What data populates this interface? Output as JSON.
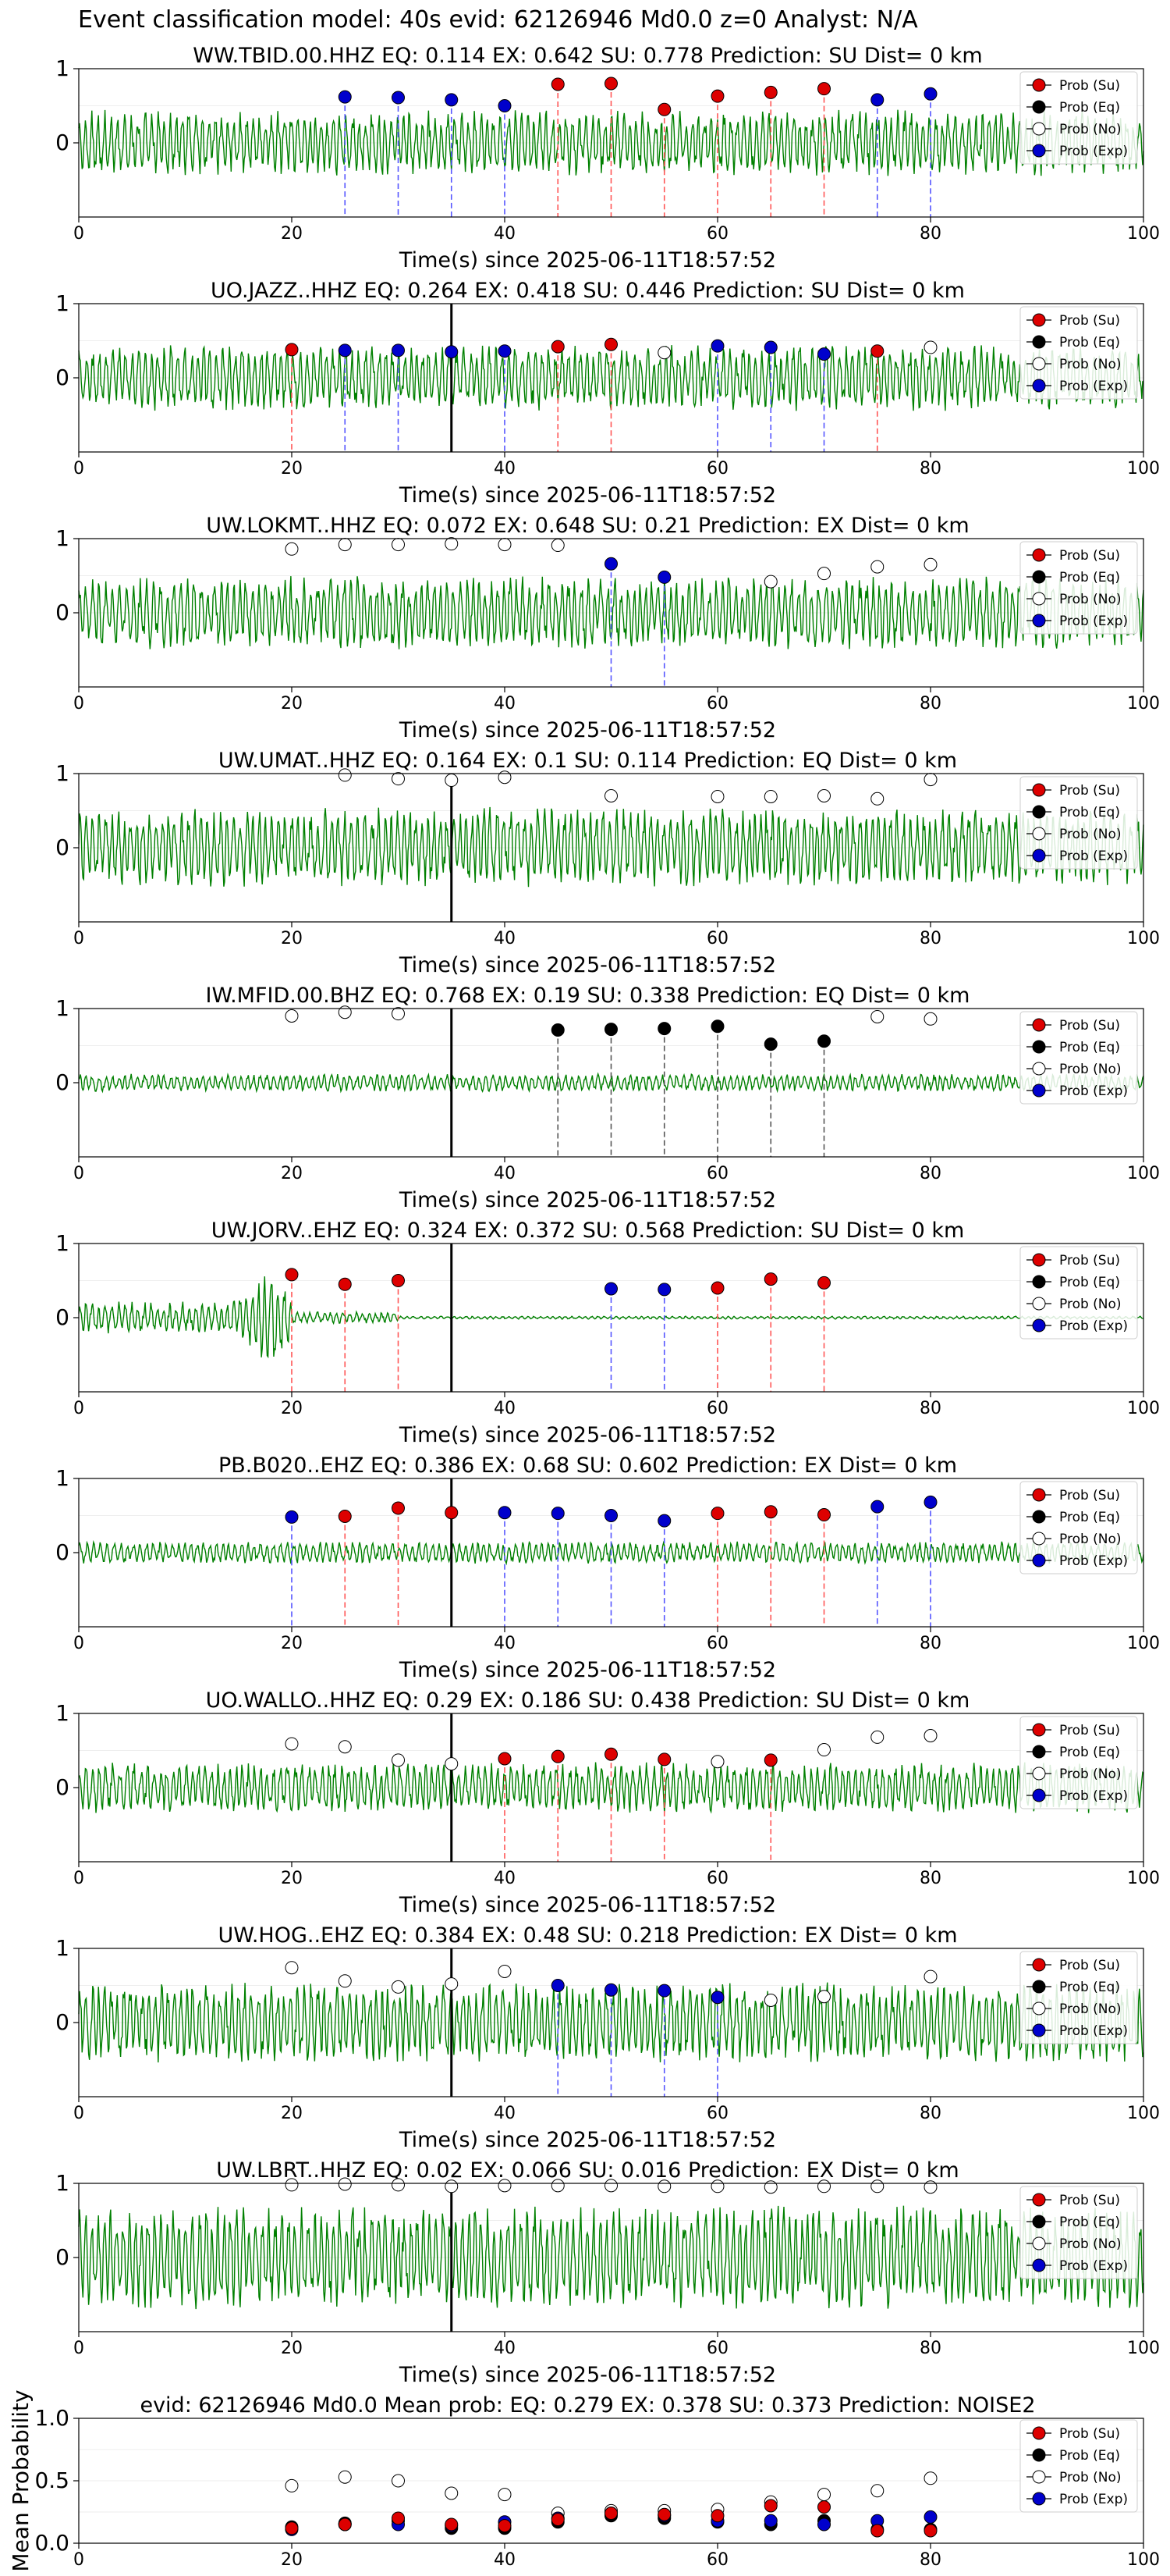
{
  "figure": {
    "title": "Event classification model: 40s evid: 62126946 Md0.0 z=0 Analyst: N/A"
  },
  "legend_labels": [
    "Prob (Su)",
    "Prob (Eq)",
    "Prob (No)",
    "Prob (Exp)"
  ],
  "colors": {
    "Su": "#dd0000",
    "Eq": "#000000",
    "No": "#ffffff",
    "Exp": "#0000cc",
    "trace": "#008000"
  },
  "chart_data": [
    {
      "type": "line",
      "title": "WW.TBID.00.HHZ   EQ: 0.114  EX: 0.642  SU: 0.778   Prediction: SU    Dist= 0 km",
      "xlabel": "Time(s) since 2025-06-11T18:57:52",
      "xlim": [
        0,
        100
      ],
      "ylim": [
        -1,
        1
      ],
      "xticks": [
        "0",
        "20",
        "40",
        "60",
        "80",
        "100"
      ],
      "yticks": [
        "1",
        "0"
      ],
      "event_line_x": 35,
      "points": [
        {
          "x": 25,
          "y": 0.62,
          "c": "Exp"
        },
        {
          "x": 30,
          "y": 0.61,
          "c": "Exp"
        },
        {
          "x": 35,
          "y": 0.58,
          "c": "Exp"
        },
        {
          "x": 40,
          "y": 0.5,
          "c": "Exp"
        },
        {
          "x": 45,
          "y": 0.79,
          "c": "Su"
        },
        {
          "x": 50,
          "y": 0.8,
          "c": "Su"
        },
        {
          "x": 55,
          "y": 0.45,
          "c": "Su"
        },
        {
          "x": 60,
          "y": 0.63,
          "c": "Su"
        },
        {
          "x": 65,
          "y": 0.68,
          "c": "Su"
        },
        {
          "x": 70,
          "y": 0.73,
          "c": "Su"
        },
        {
          "x": 75,
          "y": 0.58,
          "c": "Exp"
        },
        {
          "x": 80,
          "y": 0.66,
          "c": "Exp"
        }
      ]
    },
    {
      "type": "line",
      "title": "UO.JAZZ..HHZ   EQ: 0.264  EX: 0.418  SU: 0.446   Prediction: SU    Dist= 0 km",
      "xlabel": "Time(s) since 2025-06-11T18:57:52",
      "xlim": [
        0,
        100
      ],
      "ylim": [
        -1,
        1
      ],
      "xticks": [
        "0",
        "20",
        "40",
        "60",
        "80",
        "100"
      ],
      "yticks": [
        "1",
        "0"
      ],
      "event_line_x": 35,
      "points": [
        {
          "x": 20,
          "y": 0.38,
          "c": "Su"
        },
        {
          "x": 25,
          "y": 0.37,
          "c": "Exp"
        },
        {
          "x": 30,
          "y": 0.37,
          "c": "Exp"
        },
        {
          "x": 35,
          "y": 0.35,
          "c": "Exp"
        },
        {
          "x": 40,
          "y": 0.36,
          "c": "Exp"
        },
        {
          "x": 45,
          "y": 0.42,
          "c": "Su"
        },
        {
          "x": 50,
          "y": 0.45,
          "c": "Su"
        },
        {
          "x": 55,
          "y": 0.34,
          "c": "No"
        },
        {
          "x": 60,
          "y": 0.43,
          "c": "Exp"
        },
        {
          "x": 65,
          "y": 0.41,
          "c": "Exp"
        },
        {
          "x": 70,
          "y": 0.32,
          "c": "Exp"
        },
        {
          "x": 75,
          "y": 0.36,
          "c": "Su"
        },
        {
          "x": 80,
          "y": 0.41,
          "c": "No"
        }
      ]
    },
    {
      "type": "line",
      "title": "UW.LOKMT..HHZ   EQ: 0.072  EX: 0.648  SU: 0.21   Prediction: EX    Dist= 0 km",
      "xlabel": "Time(s) since 2025-06-11T18:57:52",
      "xlim": [
        0,
        100
      ],
      "ylim": [
        -1,
        1
      ],
      "xticks": [
        "0",
        "20",
        "40",
        "60",
        "80",
        "100"
      ],
      "yticks": [
        "1",
        "0"
      ],
      "event_line_x": 35,
      "points": [
        {
          "x": 20,
          "y": 0.86,
          "c": "No"
        },
        {
          "x": 25,
          "y": 0.92,
          "c": "No"
        },
        {
          "x": 30,
          "y": 0.92,
          "c": "No"
        },
        {
          "x": 35,
          "y": 0.93,
          "c": "No"
        },
        {
          "x": 40,
          "y": 0.92,
          "c": "No"
        },
        {
          "x": 45,
          "y": 0.91,
          "c": "No"
        },
        {
          "x": 50,
          "y": 0.66,
          "c": "Exp"
        },
        {
          "x": 55,
          "y": 0.48,
          "c": "Exp"
        },
        {
          "x": 65,
          "y": 0.42,
          "c": "No"
        },
        {
          "x": 70,
          "y": 0.53,
          "c": "No"
        },
        {
          "x": 75,
          "y": 0.62,
          "c": "No"
        },
        {
          "x": 80,
          "y": 0.65,
          "c": "No"
        }
      ]
    },
    {
      "type": "line",
      "title": "UW.UMAT..HHZ   EQ: 0.164  EX: 0.1  SU: 0.114   Prediction: EQ    Dist= 0 km",
      "xlabel": "Time(s) since 2025-06-11T18:57:52",
      "xlim": [
        0,
        100
      ],
      "ylim": [
        -1,
        1
      ],
      "xticks": [
        "0",
        "20",
        "40",
        "60",
        "80",
        "100"
      ],
      "yticks": [
        "1",
        "0"
      ],
      "event_line_x": 35,
      "points": [
        {
          "x": 25,
          "y": 0.98,
          "c": "No"
        },
        {
          "x": 30,
          "y": 0.93,
          "c": "No"
        },
        {
          "x": 35,
          "y": 0.91,
          "c": "No"
        },
        {
          "x": 40,
          "y": 0.95,
          "c": "No"
        },
        {
          "x": 50,
          "y": 0.7,
          "c": "No"
        },
        {
          "x": 60,
          "y": 0.69,
          "c": "No"
        },
        {
          "x": 65,
          "y": 0.69,
          "c": "No"
        },
        {
          "x": 70,
          "y": 0.7,
          "c": "No"
        },
        {
          "x": 75,
          "y": 0.66,
          "c": "No"
        },
        {
          "x": 80,
          "y": 0.92,
          "c": "No"
        }
      ]
    },
    {
      "type": "line",
      "title": "IW.MFID.00.BHZ   EQ: 0.768  EX: 0.19  SU: 0.338   Prediction: EQ    Dist= 0 km",
      "xlabel": "Time(s) since 2025-06-11T18:57:52",
      "xlim": [
        0,
        100
      ],
      "ylim": [
        -1,
        1
      ],
      "xticks": [
        "0",
        "20",
        "40",
        "60",
        "80",
        "100"
      ],
      "yticks": [
        "1",
        "0"
      ],
      "event_line_x": 35,
      "points": [
        {
          "x": 20,
          "y": 0.9,
          "c": "No"
        },
        {
          "x": 25,
          "y": 0.95,
          "c": "No"
        },
        {
          "x": 30,
          "y": 0.93,
          "c": "No"
        },
        {
          "x": 45,
          "y": 0.71,
          "c": "Eq"
        },
        {
          "x": 50,
          "y": 0.72,
          "c": "Eq"
        },
        {
          "x": 55,
          "y": 0.73,
          "c": "Eq"
        },
        {
          "x": 60,
          "y": 0.76,
          "c": "Eq"
        },
        {
          "x": 65,
          "y": 0.52,
          "c": "Eq"
        },
        {
          "x": 70,
          "y": 0.56,
          "c": "Eq"
        },
        {
          "x": 75,
          "y": 0.89,
          "c": "No"
        },
        {
          "x": 80,
          "y": 0.86,
          "c": "No"
        }
      ]
    },
    {
      "type": "line",
      "title": "UW.JORV..EHZ   EQ: 0.324  EX: 0.372  SU: 0.568   Prediction: SU    Dist= 0 km",
      "xlabel": "Time(s) since 2025-06-11T18:57:52",
      "xlim": [
        0,
        100
      ],
      "ylim": [
        -1,
        1
      ],
      "xticks": [
        "0",
        "20",
        "40",
        "60",
        "80",
        "100"
      ],
      "yticks": [
        "1",
        "0"
      ],
      "event_line_x": 35,
      "points": [
        {
          "x": 20,
          "y": 0.58,
          "c": "Su"
        },
        {
          "x": 25,
          "y": 0.45,
          "c": "Su"
        },
        {
          "x": 30,
          "y": 0.5,
          "c": "Su"
        },
        {
          "x": 50,
          "y": 0.39,
          "c": "Exp"
        },
        {
          "x": 55,
          "y": 0.38,
          "c": "Exp"
        },
        {
          "x": 60,
          "y": 0.4,
          "c": "Su"
        },
        {
          "x": 65,
          "y": 0.52,
          "c": "Su"
        },
        {
          "x": 70,
          "y": 0.47,
          "c": "Su"
        }
      ]
    },
    {
      "type": "line",
      "title": "PB.B020..EHZ   EQ: 0.386  EX: 0.68  SU: 0.602   Prediction: EX    Dist= 0 km",
      "xlabel": "Time(s) since 2025-06-11T18:57:52",
      "xlim": [
        0,
        100
      ],
      "ylim": [
        -1,
        1
      ],
      "xticks": [
        "0",
        "20",
        "40",
        "60",
        "80",
        "100"
      ],
      "yticks": [
        "1",
        "0"
      ],
      "event_line_x": 35,
      "points": [
        {
          "x": 20,
          "y": 0.48,
          "c": "Exp"
        },
        {
          "x": 25,
          "y": 0.49,
          "c": "Su"
        },
        {
          "x": 30,
          "y": 0.6,
          "c": "Su"
        },
        {
          "x": 35,
          "y": 0.54,
          "c": "Su"
        },
        {
          "x": 40,
          "y": 0.54,
          "c": "Exp"
        },
        {
          "x": 45,
          "y": 0.53,
          "c": "Exp"
        },
        {
          "x": 50,
          "y": 0.5,
          "c": "Exp"
        },
        {
          "x": 55,
          "y": 0.43,
          "c": "Exp"
        },
        {
          "x": 60,
          "y": 0.53,
          "c": "Su"
        },
        {
          "x": 65,
          "y": 0.55,
          "c": "Su"
        },
        {
          "x": 70,
          "y": 0.51,
          "c": "Su"
        },
        {
          "x": 75,
          "y": 0.62,
          "c": "Exp"
        },
        {
          "x": 80,
          "y": 0.68,
          "c": "Exp"
        }
      ]
    },
    {
      "type": "line",
      "title": "UO.WALLO..HHZ   EQ: 0.29  EX: 0.186  SU: 0.438   Prediction: SU    Dist= 0 km",
      "xlabel": "Time(s) since 2025-06-11T18:57:52",
      "xlim": [
        0,
        100
      ],
      "ylim": [
        -1,
        1
      ],
      "xticks": [
        "0",
        "20",
        "40",
        "60",
        "80",
        "100"
      ],
      "yticks": [
        "1",
        "0"
      ],
      "event_line_x": 35,
      "points": [
        {
          "x": 20,
          "y": 0.59,
          "c": "No"
        },
        {
          "x": 25,
          "y": 0.55,
          "c": "No"
        },
        {
          "x": 30,
          "y": 0.37,
          "c": "No"
        },
        {
          "x": 35,
          "y": 0.32,
          "c": "No"
        },
        {
          "x": 40,
          "y": 0.39,
          "c": "Su"
        },
        {
          "x": 45,
          "y": 0.42,
          "c": "Su"
        },
        {
          "x": 50,
          "y": 0.45,
          "c": "Su"
        },
        {
          "x": 55,
          "y": 0.38,
          "c": "Su"
        },
        {
          "x": 60,
          "y": 0.35,
          "c": "No"
        },
        {
          "x": 65,
          "y": 0.37,
          "c": "Su"
        },
        {
          "x": 70,
          "y": 0.51,
          "c": "No"
        },
        {
          "x": 75,
          "y": 0.68,
          "c": "No"
        },
        {
          "x": 80,
          "y": 0.7,
          "c": "No"
        }
      ]
    },
    {
      "type": "line",
      "title": "UW.HOG..EHZ   EQ: 0.384  EX: 0.48  SU: 0.218   Prediction: EX    Dist= 0 km",
      "xlabel": "Time(s) since 2025-06-11T18:57:52",
      "xlim": [
        0,
        100
      ],
      "ylim": [
        -1,
        1
      ],
      "xticks": [
        "0",
        "20",
        "40",
        "60",
        "80",
        "100"
      ],
      "yticks": [
        "1",
        "0"
      ],
      "event_line_x": 35,
      "points": [
        {
          "x": 20,
          "y": 0.74,
          "c": "No"
        },
        {
          "x": 25,
          "y": 0.56,
          "c": "No"
        },
        {
          "x": 30,
          "y": 0.48,
          "c": "No"
        },
        {
          "x": 35,
          "y": 0.52,
          "c": "No"
        },
        {
          "x": 40,
          "y": 0.69,
          "c": "No"
        },
        {
          "x": 45,
          "y": 0.5,
          "c": "Exp"
        },
        {
          "x": 50,
          "y": 0.44,
          "c": "Exp"
        },
        {
          "x": 55,
          "y": 0.43,
          "c": "Exp"
        },
        {
          "x": 60,
          "y": 0.34,
          "c": "Exp"
        },
        {
          "x": 65,
          "y": 0.3,
          "c": "No"
        },
        {
          "x": 70,
          "y": 0.35,
          "c": "No"
        },
        {
          "x": 80,
          "y": 0.62,
          "c": "No"
        }
      ]
    },
    {
      "type": "line",
      "title": "UW.LBRT..HHZ   EQ: 0.02  EX: 0.066  SU: 0.016   Prediction: EX    Dist= 0 km",
      "xlabel": "Time(s) since 2025-06-11T18:57:52",
      "xlim": [
        0,
        100
      ],
      "ylim": [
        -1,
        1
      ],
      "xticks": [
        "0",
        "20",
        "40",
        "60",
        "80",
        "100"
      ],
      "yticks": [
        "1",
        "0"
      ],
      "event_line_x": 35,
      "points": [
        {
          "x": 20,
          "y": 0.98,
          "c": "No"
        },
        {
          "x": 25,
          "y": 0.99,
          "c": "No"
        },
        {
          "x": 30,
          "y": 0.98,
          "c": "No"
        },
        {
          "x": 35,
          "y": 0.96,
          "c": "No"
        },
        {
          "x": 40,
          "y": 0.97,
          "c": "No"
        },
        {
          "x": 45,
          "y": 0.97,
          "c": "No"
        },
        {
          "x": 50,
          "y": 0.97,
          "c": "No"
        },
        {
          "x": 55,
          "y": 0.96,
          "c": "No"
        },
        {
          "x": 60,
          "y": 0.96,
          "c": "No"
        },
        {
          "x": 65,
          "y": 0.95,
          "c": "No"
        },
        {
          "x": 70,
          "y": 0.96,
          "c": "No"
        },
        {
          "x": 75,
          "y": 0.96,
          "c": "No"
        },
        {
          "x": 80,
          "y": 0.95,
          "c": "No"
        }
      ]
    },
    {
      "type": "scatter",
      "title": "evid: 62126946  Md0.0   Mean prob:   EQ: 0.279  EX: 0.378  SU: 0.373   Prediction: NOISE2",
      "xlabel": "",
      "ylabel": "Mean Probability",
      "xlim": [
        0,
        100
      ],
      "ylim": [
        0,
        1
      ],
      "xticks": [
        "0",
        "20",
        "40",
        "60",
        "80",
        "100"
      ],
      "yticks": [
        "1.0",
        "0.5",
        "0.0"
      ],
      "series": [
        {
          "name": "Prob (No)",
          "c": "No",
          "x": [
            20,
            25,
            30,
            35,
            40,
            45,
            50,
            55,
            60,
            65,
            70,
            75,
            80
          ],
          "y": [
            0.46,
            0.53,
            0.5,
            0.4,
            0.39,
            0.24,
            0.26,
            0.26,
            0.27,
            0.33,
            0.39,
            0.42,
            0.52
          ]
        },
        {
          "name": "Prob (Eq)",
          "c": "Eq",
          "x": [
            20,
            25,
            30,
            35,
            40,
            45,
            50,
            55,
            60,
            65,
            70,
            75,
            80
          ],
          "y": [
            0.13,
            0.16,
            0.18,
            0.12,
            0.12,
            0.17,
            0.22,
            0.2,
            0.17,
            0.15,
            0.18,
            0.11,
            0.11
          ]
        },
        {
          "name": "Prob (Exp)",
          "c": "Exp",
          "x": [
            20,
            25,
            30,
            35,
            40,
            45,
            50,
            55,
            60,
            65,
            70,
            75,
            80
          ],
          "y": [
            0.11,
            0.15,
            0.15,
            0.14,
            0.17,
            0.2,
            0.24,
            0.22,
            0.18,
            0.18,
            0.15,
            0.18,
            0.21
          ]
        },
        {
          "name": "Prob (Su)",
          "c": "Su",
          "x": [
            20,
            25,
            30,
            35,
            40,
            45,
            50,
            55,
            60,
            65,
            70,
            75,
            80
          ],
          "y": [
            0.12,
            0.15,
            0.2,
            0.15,
            0.14,
            0.19,
            0.24,
            0.23,
            0.22,
            0.3,
            0.29,
            0.1,
            0.1
          ]
        }
      ]
    }
  ]
}
